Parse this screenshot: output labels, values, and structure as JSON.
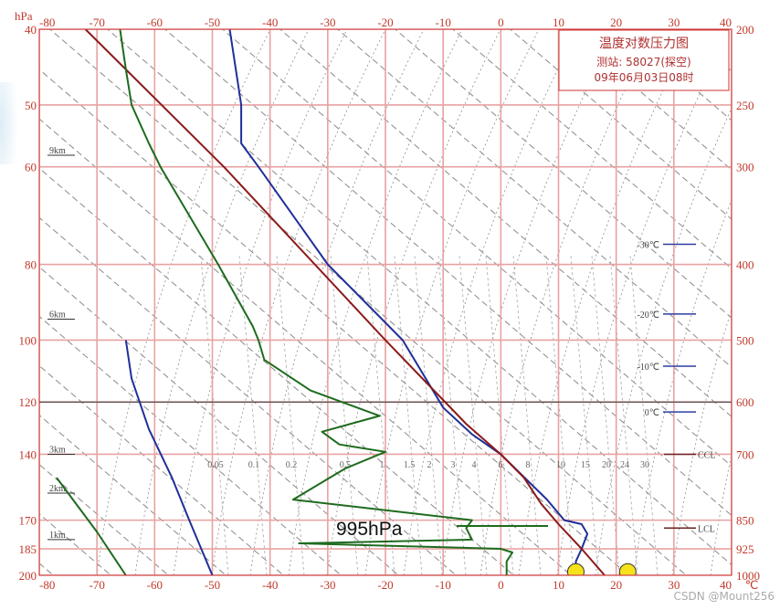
{
  "chart_data": {
    "type": "line",
    "title": "温度对数压力图",
    "subtitle_station": "测站: 58027(探空)",
    "subtitle_time": "09年06月03日08时",
    "y_left_top_label": "hPa",
    "x_unit": "℃",
    "x_range": [
      -80,
      40
    ],
    "x_ticks": [
      -80,
      -70,
      -60,
      -50,
      -40,
      -30,
      -20,
      -10,
      0,
      10,
      20,
      30,
      40
    ],
    "p_range": [
      200,
      1000
    ],
    "pressure_levels": [
      200,
      250,
      300,
      400,
      500,
      600,
      700,
      850,
      925,
      1000
    ],
    "left_height_labels": [
      "40",
      "50",
      "60",
      "80",
      "100",
      "120",
      "140",
      "170",
      "185",
      "200"
    ],
    "km_labels": [
      {
        "label": "9km",
        "p": 290
      },
      {
        "label": "6km",
        "p": 470
      },
      {
        "label": "3km",
        "p": 700
      },
      {
        "label": "2km",
        "p": 785
      },
      {
        "label": "1km",
        "p": 900
      }
    ],
    "right_markers": [
      {
        "label": "-30℃",
        "p": 377
      },
      {
        "label": "-20℃",
        "p": 463
      },
      {
        "label": "-10℃",
        "p": 540
      },
      {
        "label": "0℃",
        "p": 618
      },
      {
        "label": "CCL",
        "p": 700
      },
      {
        "label": "LCL",
        "p": 870
      }
    ],
    "mixing_ratio_labels": [
      "0.05",
      "0.1",
      "0.2",
      "0.5",
      "1",
      "1.5",
      "2",
      "3",
      "4",
      "6",
      "8",
      "10",
      "15",
      "20",
      "24",
      "30"
    ],
    "series": [
      {
        "color": "#1f2f9a",
        "points": [
          [
            -47,
            200
          ],
          [
            -45,
            250
          ],
          [
            -45,
            280
          ],
          [
            -42,
            300
          ],
          [
            -30,
            400
          ],
          [
            -17,
            500
          ],
          [
            -10,
            610
          ],
          [
            -5,
            660
          ],
          [
            0,
            700
          ],
          [
            8,
            800
          ],
          [
            11,
            850
          ],
          [
            14,
            860
          ],
          [
            15,
            885
          ],
          [
            14,
            925
          ],
          [
            13,
            960
          ],
          [
            13,
            1000
          ]
        ]
      },
      {
        "color": "#8b1a1a",
        "points": [
          [
            -72,
            200
          ],
          [
            -48,
            300
          ],
          [
            -20,
            500
          ],
          [
            -6,
            640
          ],
          [
            0,
            700
          ],
          [
            4,
            750
          ],
          [
            7,
            810
          ],
          [
            10,
            860
          ],
          [
            14,
            925
          ],
          [
            18,
            1000
          ]
        ]
      },
      {
        "color": "#1e6b1e",
        "points": [
          [
            -66,
            200
          ],
          [
            -65,
            225
          ],
          [
            -64,
            250
          ],
          [
            -61,
            280
          ],
          [
            -59,
            300
          ],
          [
            -49,
            400
          ],
          [
            -43,
            480
          ],
          [
            -42,
            500
          ],
          [
            -41,
            530
          ],
          [
            -33,
            580
          ],
          [
            -21,
            625
          ],
          [
            -31,
            655
          ],
          [
            -28,
            680
          ],
          [
            -20,
            695
          ],
          [
            -27,
            730
          ],
          [
            -36,
            800
          ],
          [
            -5,
            850
          ],
          [
            -6,
            870
          ],
          [
            -5,
            900
          ],
          [
            -35,
            910
          ],
          [
            0,
            925
          ],
          [
            2,
            935
          ],
          [
            1,
            960
          ],
          [
            1,
            1000
          ]
        ]
      },
      {
        "color": "#1f2f9a",
        "points": [
          [
            -65,
            500
          ],
          [
            -64,
            560
          ],
          [
            -61,
            650
          ],
          [
            -57,
            750
          ],
          [
            -54,
            850
          ],
          [
            -50,
            1000
          ]
        ]
      },
      {
        "color": "#1e6b1e",
        "points": [
          [
            -77,
            750
          ],
          [
            -70,
            880
          ],
          [
            -65,
            1000
          ]
        ]
      }
    ],
    "surface_points": [
      {
        "t": 13,
        "p": 990,
        "color": "#f5e21a"
      },
      {
        "t": 22,
        "p": 990,
        "color": "#f5e21a"
      }
    ],
    "annotation": "995hPa",
    "watermark": "CSDN @Mount256"
  }
}
